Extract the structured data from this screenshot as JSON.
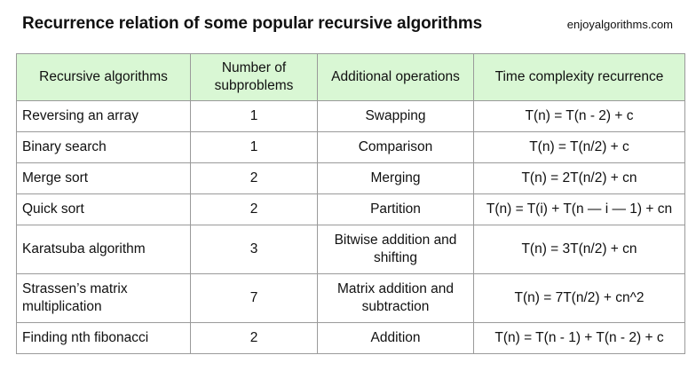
{
  "header": {
    "title": "Recurrence relation of some popular recursive algorithms",
    "brand_prefix": "enjoyalgorithms",
    "brand_suffix": ".com"
  },
  "table": {
    "columns": [
      "Recursive algorithms",
      "Number of subproblems",
      "Additional operations",
      "Time complexity recurrence"
    ],
    "rows": [
      {
        "algorithm": "Reversing an array",
        "subproblems": "1",
        "operations": "Swapping",
        "recurrence": "T(n) = T(n - 2) + c"
      },
      {
        "algorithm": "Binary search",
        "subproblems": "1",
        "operations": "Comparison",
        "recurrence": "T(n) = T(n/2) + c"
      },
      {
        "algorithm": "Merge sort",
        "subproblems": "2",
        "operations": "Merging",
        "recurrence": "T(n) = 2T(n/2) + cn"
      },
      {
        "algorithm": "Quick sort",
        "subproblems": "2",
        "operations": "Partition",
        "recurrence": "T(n) = T(i) + T(n — i — 1) + cn"
      },
      {
        "algorithm": "Karatsuba algorithm",
        "subproblems": "3",
        "operations": "Bitwise addition and shifting",
        "recurrence": "T(n) = 3T(n/2) + cn"
      },
      {
        "algorithm": "Strassen’s matrix multiplication",
        "subproblems": "7",
        "operations": "Matrix addition and subtraction",
        "recurrence": "T(n) = 7T(n/2) + cn^2"
      },
      {
        "algorithm": "Finding nth fibonacci",
        "subproblems": "2",
        "operations": "Addition",
        "recurrence": "T(n) = T(n - 1) + T(n - 2) + c"
      }
    ]
  }
}
